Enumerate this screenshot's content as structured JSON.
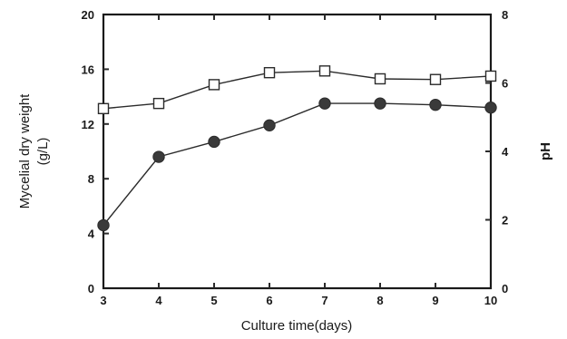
{
  "chart_data": {
    "type": "line",
    "xlabel": "Culture time(days)",
    "ylabel_left": "Mycelial dry weight",
    "ylabel_left_unit": "(g/L)",
    "ylabel_right": "pH",
    "xlim": [
      3,
      10
    ],
    "ylim_left": [
      0,
      20
    ],
    "ylim_right": [
      0,
      8
    ],
    "x_ticks": [
      "3",
      "4",
      "5",
      "6",
      "7",
      "8",
      "9",
      "10"
    ],
    "y_left_ticks": [
      "0",
      "4",
      "8",
      "12",
      "16",
      "20"
    ],
    "y_right_ticks": [
      "0",
      "2",
      "4",
      "6",
      "8"
    ],
    "grid": false,
    "x": [
      3,
      4,
      5,
      6,
      7,
      8,
      9,
      10
    ],
    "series": [
      {
        "axis": "left",
        "marker": "filled-circle",
        "values": [
          4.6,
          9.6,
          10.7,
          11.9,
          13.5,
          13.5,
          13.4,
          13.2
        ]
      },
      {
        "axis": "right",
        "marker": "open-square",
        "values": [
          5.25,
          5.4,
          5.95,
          6.3,
          6.35,
          6.12,
          6.1,
          6.2
        ]
      }
    ],
    "colors": {
      "line": "#2b2b2b",
      "marker_fill": "#3a3a3a",
      "open_marker_fill": "#ffffff"
    }
  }
}
